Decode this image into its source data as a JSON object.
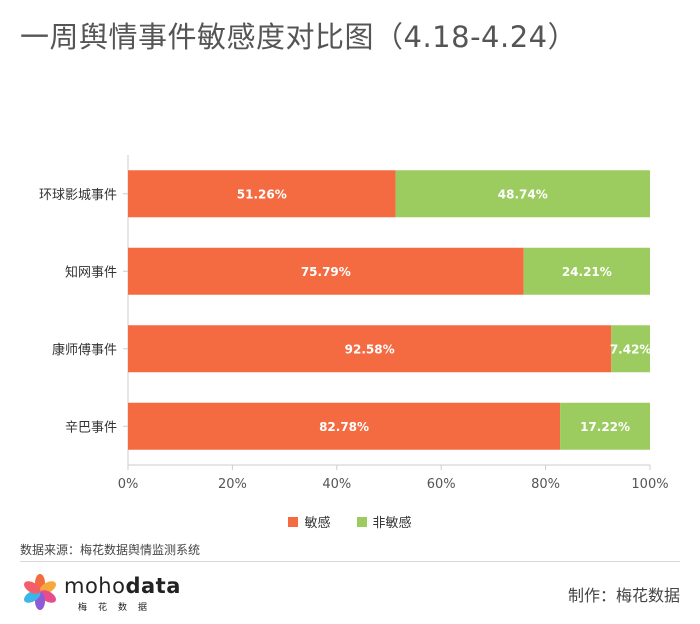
{
  "title": "一周舆情事件敏感度对比图（4.18-4.24）",
  "colors": {
    "sensitive": "#f46b42",
    "non_sensitive": "#9ccc5f",
    "axis": "#cccccc",
    "grid": "#e6e6e6",
    "label_inside": "#ffffff"
  },
  "chart_data": {
    "type": "bar",
    "orientation": "horizontal",
    "stacked": true,
    "categories": [
      "环球影城事件",
      "知网事件",
      "康师傅事件",
      "辛巴事件"
    ],
    "series": [
      {
        "name": "敏感",
        "values": [
          51.26,
          75.79,
          92.58,
          82.78
        ],
        "labels": [
          "51.26%",
          "75.79%",
          "92.58%",
          "82.78%"
        ]
      },
      {
        "name": "非敏感",
        "values": [
          48.74,
          24.21,
          7.42,
          17.22
        ],
        "labels": [
          "48.74%",
          "24.21%",
          "7.42%",
          "17.22%"
        ]
      }
    ],
    "xlim": [
      0,
      100
    ],
    "xticks": [
      "0%",
      "20%",
      "40%",
      "60%",
      "80%",
      "100%"
    ],
    "legend_position": "bottom",
    "grid": false
  },
  "footer": {
    "source": "数据来源：梅花数据舆情监测系统",
    "logo_word_light": "moho",
    "logo_word_bold": "data",
    "logo_sub": "梅花数据",
    "credit": "制作：梅花数据"
  }
}
